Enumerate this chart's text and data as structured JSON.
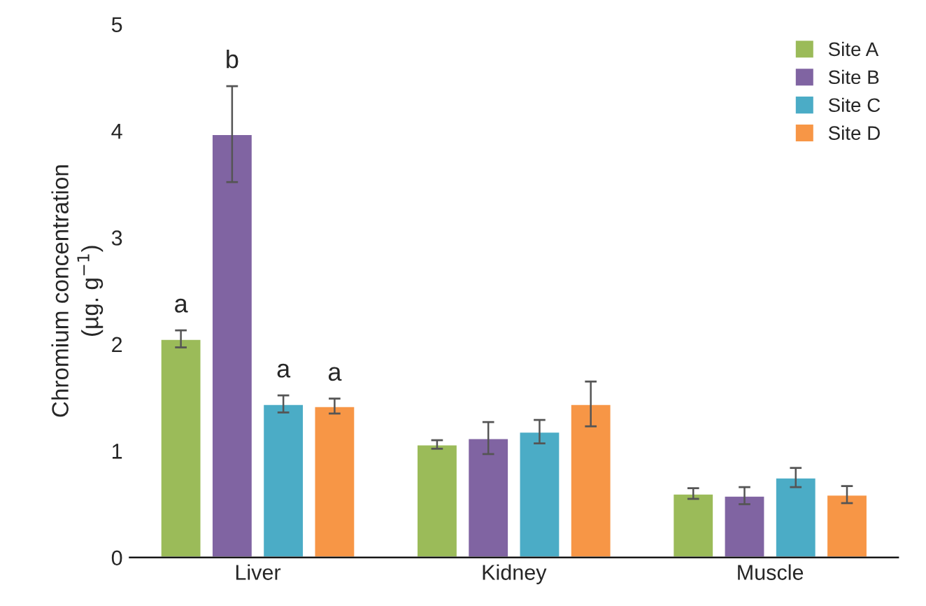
{
  "chart_data": {
    "type": "bar",
    "ylabel": "Chromium concentration\n(µg. g$^{−1}$)",
    "categories": [
      "Liver",
      "Kidney",
      "Muscle"
    ],
    "series": [
      {
        "name": "Site A",
        "color": "#9bbb59",
        "values": [
          2.05,
          1.06,
          0.6
        ],
        "errors": [
          0.08,
          0.04,
          0.05
        ]
      },
      {
        "name": "Site B",
        "color": "#8064a2",
        "values": [
          3.97,
          1.12,
          0.58
        ],
        "errors": [
          0.45,
          0.15,
          0.08
        ]
      },
      {
        "name": "Site C",
        "color": "#4bacc6",
        "values": [
          1.44,
          1.18,
          0.75
        ],
        "errors": [
          0.08,
          0.11,
          0.09
        ]
      },
      {
        "name": "Site D",
        "color": "#f79646",
        "values": [
          1.42,
          1.44,
          0.59
        ],
        "errors": [
          0.07,
          0.21,
          0.08
        ]
      }
    ],
    "annotations": [
      "a",
      "b",
      "a",
      "a"
    ],
    "ylim": [
      0,
      5
    ],
    "yticks": [
      0,
      1,
      2,
      3,
      4,
      5
    ],
    "grid": false,
    "legend": "top right"
  }
}
